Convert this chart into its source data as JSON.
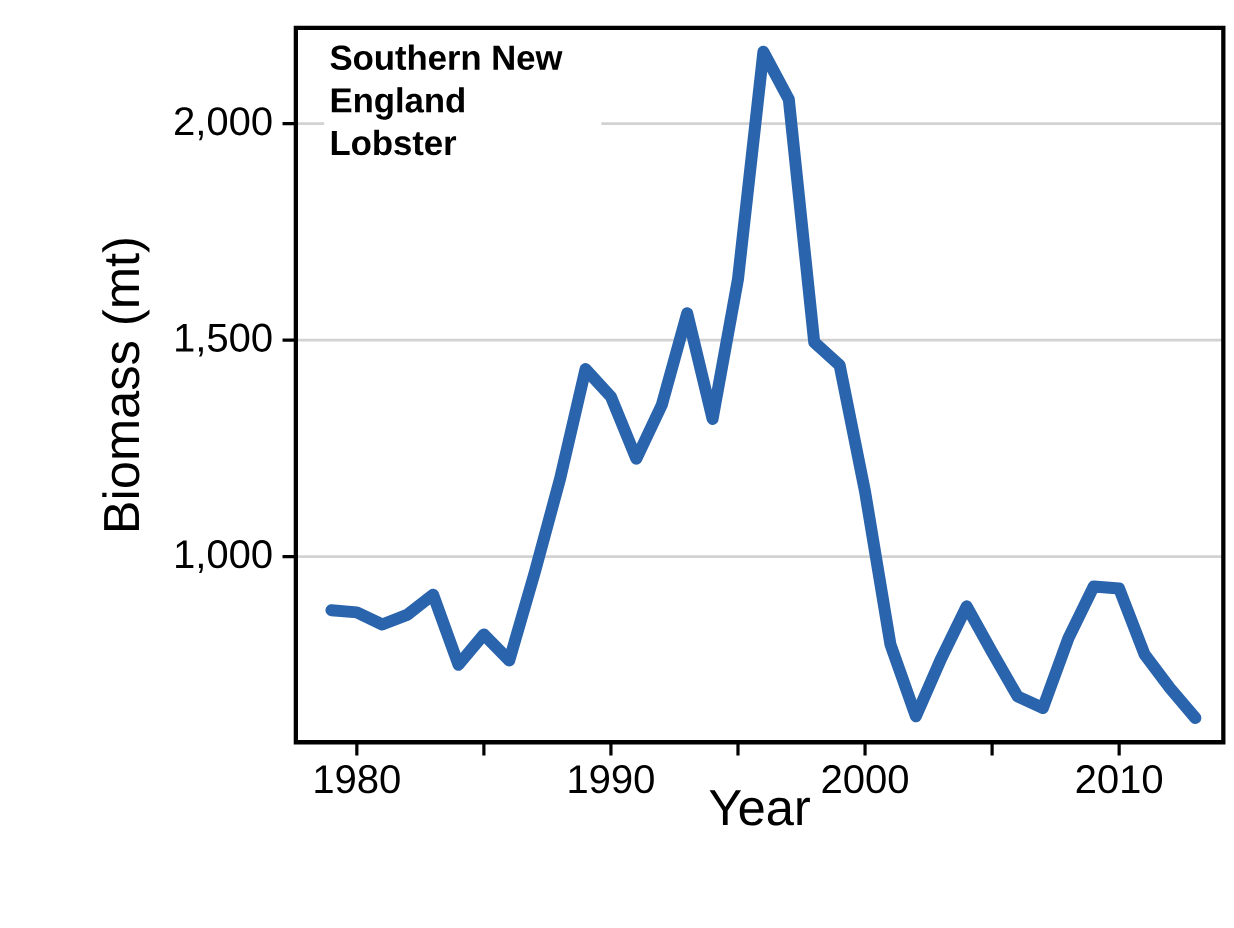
{
  "chart_data": {
    "type": "line",
    "title": "Southern New England Lobster",
    "xlabel": "Year",
    "ylabel": "Biomass (mt)",
    "x": [
      1979,
      1980,
      1981,
      1982,
      1983,
      1984,
      1985,
      1986,
      1987,
      1988,
      1989,
      1990,
      1991,
      1992,
      1993,
      1994,
      1995,
      1996,
      1997,
      1998,
      1999,
      2000,
      2001,
      2002,
      2003,
      2004,
      2005,
      2006,
      2007,
      2008,
      2009,
      2010,
      2011,
      2012,
      2013
    ],
    "series": [
      {
        "color": "#2a64ad",
        "values": [
          876,
          871,
          843,
          866,
          912,
          750,
          820,
          760,
          963,
          1180,
          1433,
          1369,
          1226,
          1350,
          1562,
          1318,
          1641,
          2166,
          2056,
          1495,
          1442,
          1150,
          797,
          631,
          765,
          885,
          779,
          677,
          650,
          811,
          931,
          926,
          774,
          696,
          627
        ]
      }
    ],
    "xlim": [
      1977.6,
      2014.1
    ],
    "ylim": [
      571,
      2221
    ],
    "xticks": [
      1980,
      {
        "value": 1985,
        "label": null
      },
      1990,
      {
        "value": 1995,
        "label": null
      },
      2000,
      {
        "value": 2005,
        "label": null
      },
      2010
    ],
    "yticks": [
      {
        "value": 1000,
        "label": "1,000"
      },
      {
        "value": 1500,
        "label": "1,500"
      },
      {
        "value": 2000,
        "label": "2,000"
      }
    ],
    "grid": "y",
    "marker": "none",
    "line_style": "solid"
  }
}
